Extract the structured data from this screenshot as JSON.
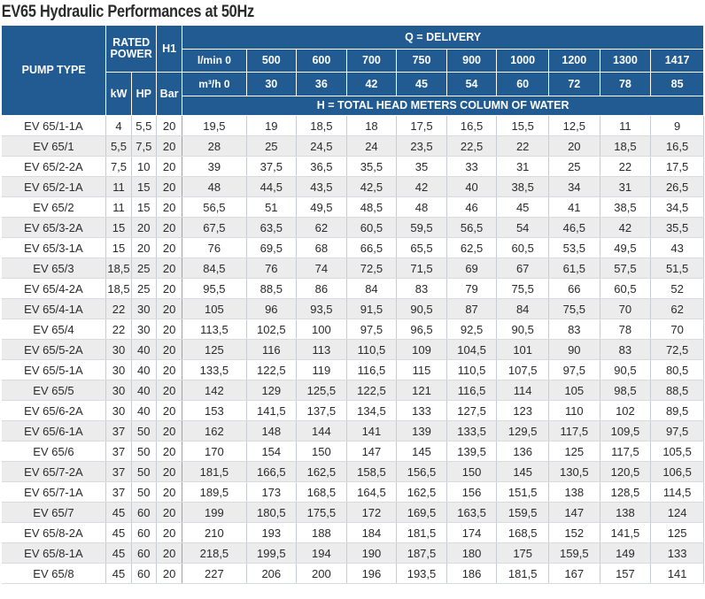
{
  "title": "EV65 Hydraulic Performances at 50Hz",
  "headers": {
    "pump_type": "PUMP TYPE",
    "rated_power": "RATED POWER",
    "h1": "H1",
    "delivery": "Q = DELIVERY",
    "kw": "kW",
    "hp": "HP",
    "bar": "Bar",
    "lmin_label": "l/min 0",
    "m3h_label": "m³/h 0",
    "head": "H = TOTAL HEAD METERS COLUMN OF WATER",
    "lmin": [
      "500",
      "600",
      "700",
      "750",
      "900",
      "1000",
      "1200",
      "1300",
      "1417"
    ],
    "m3h": [
      "30",
      "36",
      "42",
      "45",
      "54",
      "60",
      "72",
      "78",
      "85"
    ]
  },
  "rows": [
    {
      "type": "EV 65/1-1A",
      "kw": "4",
      "hp": "5,5",
      "h1": "20",
      "h": [
        "19,5",
        "19",
        "18,5",
        "18",
        "17,5",
        "16,5",
        "15,5",
        "12,5",
        "11",
        "9"
      ]
    },
    {
      "type": "EV 65/1",
      "kw": "5,5",
      "hp": "7,5",
      "h1": "20",
      "h": [
        "28",
        "25",
        "24,5",
        "24",
        "23,5",
        "22,5",
        "22",
        "20",
        "18,5",
        "16,5"
      ]
    },
    {
      "type": "EV 65/2-2A",
      "kw": "7,5",
      "hp": "10",
      "h1": "20",
      "h": [
        "39",
        "37,5",
        "36,5",
        "35,5",
        "35",
        "33",
        "31",
        "25",
        "22",
        "17,5"
      ]
    },
    {
      "type": "EV 65/2-1A",
      "kw": "11",
      "hp": "15",
      "h1": "20",
      "h": [
        "48",
        "44,5",
        "43,5",
        "42,5",
        "42",
        "40",
        "38,5",
        "34",
        "31",
        "26,5"
      ]
    },
    {
      "type": "EV 65/2",
      "kw": "11",
      "hp": "15",
      "h1": "20",
      "h": [
        "56,5",
        "51",
        "49,5",
        "48,5",
        "48",
        "46",
        "45",
        "41",
        "38,5",
        "34,5"
      ]
    },
    {
      "type": "EV 65/3-2A",
      "kw": "15",
      "hp": "20",
      "h1": "20",
      "h": [
        "67,5",
        "63,5",
        "62",
        "60,5",
        "59,5",
        "56,5",
        "54",
        "46,5",
        "42",
        "35,5"
      ]
    },
    {
      "type": "EV 65/3-1A",
      "kw": "15",
      "hp": "20",
      "h1": "20",
      "h": [
        "76",
        "69,5",
        "68",
        "66,5",
        "65,5",
        "62,5",
        "60,5",
        "53,5",
        "49,5",
        "43"
      ]
    },
    {
      "type": "EV 65/3",
      "kw": "18,5",
      "hp": "25",
      "h1": "20",
      "h": [
        "84,5",
        "76",
        "74",
        "72,5",
        "71,5",
        "69",
        "67",
        "61,5",
        "57,5",
        "51,5"
      ]
    },
    {
      "type": "EV 65/4-2A",
      "kw": "18,5",
      "hp": "25",
      "h1": "20",
      "h": [
        "95,5",
        "88,5",
        "86",
        "84",
        "83",
        "79",
        "75,5",
        "66",
        "60,5",
        "52"
      ]
    },
    {
      "type": "EV 65/4-1A",
      "kw": "22",
      "hp": "30",
      "h1": "20",
      "h": [
        "105",
        "96",
        "93,5",
        "91,5",
        "90,5",
        "87",
        "84",
        "75,5",
        "70",
        "62"
      ]
    },
    {
      "type": "EV 65/4",
      "kw": "22",
      "hp": "30",
      "h1": "20",
      "h": [
        "113,5",
        "102,5",
        "100",
        "97,5",
        "96,5",
        "92,5",
        "90,5",
        "83",
        "78",
        "70"
      ]
    },
    {
      "type": "EV 65/5-2A",
      "kw": "30",
      "hp": "40",
      "h1": "20",
      "h": [
        "125",
        "116",
        "113",
        "110,5",
        "109",
        "104,5",
        "101",
        "90",
        "83",
        "72,5"
      ]
    },
    {
      "type": "EV 65/5-1A",
      "kw": "30",
      "hp": "40",
      "h1": "20",
      "h": [
        "133,5",
        "122,5",
        "119",
        "116,5",
        "115",
        "110,5",
        "107,5",
        "97,5",
        "90,5",
        "80,5"
      ]
    },
    {
      "type": "EV 65/5",
      "kw": "30",
      "hp": "40",
      "h1": "20",
      "h": [
        "142",
        "129",
        "125,5",
        "122,5",
        "121",
        "116,5",
        "114",
        "105",
        "98,5",
        "88,5"
      ]
    },
    {
      "type": "EV 65/6-2A",
      "kw": "30",
      "hp": "40",
      "h1": "20",
      "h": [
        "153",
        "141,5",
        "137,5",
        "134,5",
        "133",
        "127,5",
        "123",
        "110",
        "102",
        "89,5"
      ]
    },
    {
      "type": "EV 65/6-1A",
      "kw": "37",
      "hp": "50",
      "h1": "20",
      "h": [
        "162",
        "148",
        "144",
        "141",
        "139",
        "133,5",
        "129,5",
        "117,5",
        "109,5",
        "97,5"
      ]
    },
    {
      "type": "EV 65/6",
      "kw": "37",
      "hp": "50",
      "h1": "20",
      "h": [
        "170",
        "154",
        "150",
        "147",
        "145",
        "139,5",
        "136",
        "125",
        "117,5",
        "105,5"
      ]
    },
    {
      "type": "EV 65/7-2A",
      "kw": "37",
      "hp": "50",
      "h1": "20",
      "h": [
        "181,5",
        "166,5",
        "162,5",
        "158,5",
        "156,5",
        "150",
        "145",
        "130,5",
        "120,5",
        "106,5"
      ]
    },
    {
      "type": "EV 65/7-1A",
      "kw": "37",
      "hp": "50",
      "h1": "20",
      "h": [
        "189,5",
        "173",
        "168,5",
        "164,5",
        "162,5",
        "156",
        "151,5",
        "138",
        "128,5",
        "114,5"
      ]
    },
    {
      "type": "EV 65/7",
      "kw": "45",
      "hp": "60",
      "h1": "20",
      "h": [
        "199",
        "180,5",
        "175,5",
        "172",
        "169,5",
        "163,5",
        "159,5",
        "147",
        "138",
        "124"
      ]
    },
    {
      "type": "EV 65/8-2A",
      "kw": "45",
      "hp": "60",
      "h1": "20",
      "h": [
        "210",
        "193",
        "188",
        "184",
        "181,5",
        "174",
        "168,5",
        "152",
        "141,5",
        "125"
      ]
    },
    {
      "type": "EV 65/8-1A",
      "kw": "45",
      "hp": "60",
      "h1": "20",
      "h": [
        "218,5",
        "199,5",
        "194",
        "190",
        "187,5",
        "180",
        "175",
        "159,5",
        "149",
        "133"
      ]
    },
    {
      "type": "EV 65/8",
      "kw": "45",
      "hp": "60",
      "h1": "20",
      "h": [
        "227",
        "206",
        "200",
        "196",
        "193,5",
        "186",
        "181,5",
        "167",
        "157",
        "141"
      ]
    }
  ]
}
